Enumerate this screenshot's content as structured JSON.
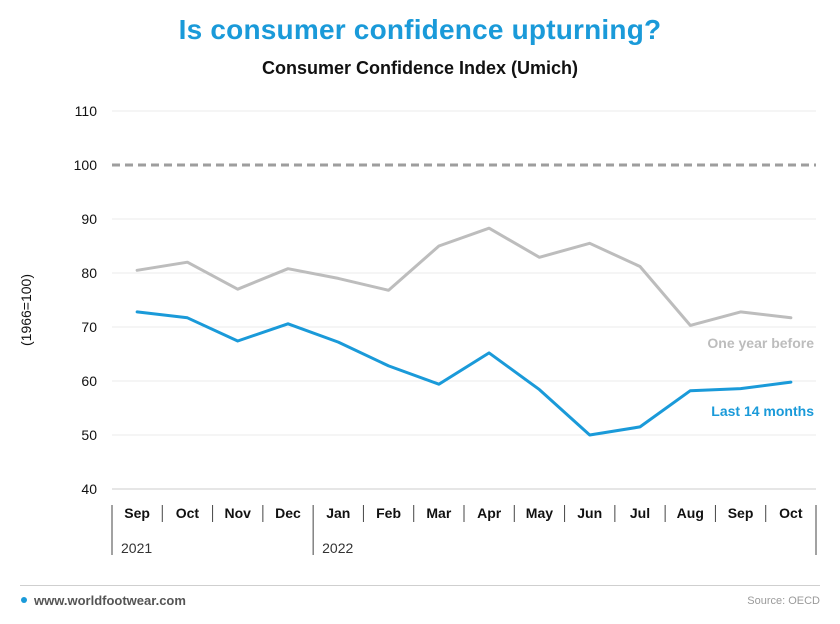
{
  "header": {
    "title": "Is consumer confidence upturning?",
    "subtitle": "Consumer Confidence Index (Umich)"
  },
  "chart_data": {
    "type": "line",
    "title": "Is consumer confidence upturning?",
    "subtitle": "Consumer Confidence Index (Umich)",
    "ylabel": "(1966=100)",
    "xlabel": "",
    "ylim": [
      40,
      110
    ],
    "yticks": [
      40,
      50,
      60,
      70,
      80,
      90,
      100,
      110
    ],
    "categories": [
      "Sep",
      "Oct",
      "Nov",
      "Dec",
      "Jan",
      "Feb",
      "Mar",
      "Apr",
      "May",
      "Jun",
      "Jul",
      "Aug",
      "Sep",
      "Oct"
    ],
    "year_groups": [
      {
        "label": "2021",
        "start": "Sep",
        "months": 4
      },
      {
        "label": "2022",
        "start": "Jan",
        "months": 10
      }
    ],
    "reference_line": {
      "value": 100,
      "style": "dashed",
      "color": "#9e9e9e"
    },
    "grid": "horizontal",
    "series": [
      {
        "name": "One year before",
        "color": "#bdbdbd",
        "values": [
          80.5,
          82.0,
          77.0,
          80.8,
          79.0,
          76.8,
          85.0,
          88.3,
          82.9,
          85.5,
          81.2,
          70.3,
          72.8,
          71.7
        ]
      },
      {
        "name": "Last 14 months",
        "color": "#1a9ad9",
        "values": [
          72.8,
          71.7,
          67.4,
          70.6,
          67.2,
          62.8,
          59.4,
          65.2,
          58.4,
          50.0,
          51.5,
          58.2,
          58.6,
          59.8
        ]
      }
    ]
  },
  "footer": {
    "site": "www.worldfootwear.com",
    "source": "Source: OECD"
  }
}
